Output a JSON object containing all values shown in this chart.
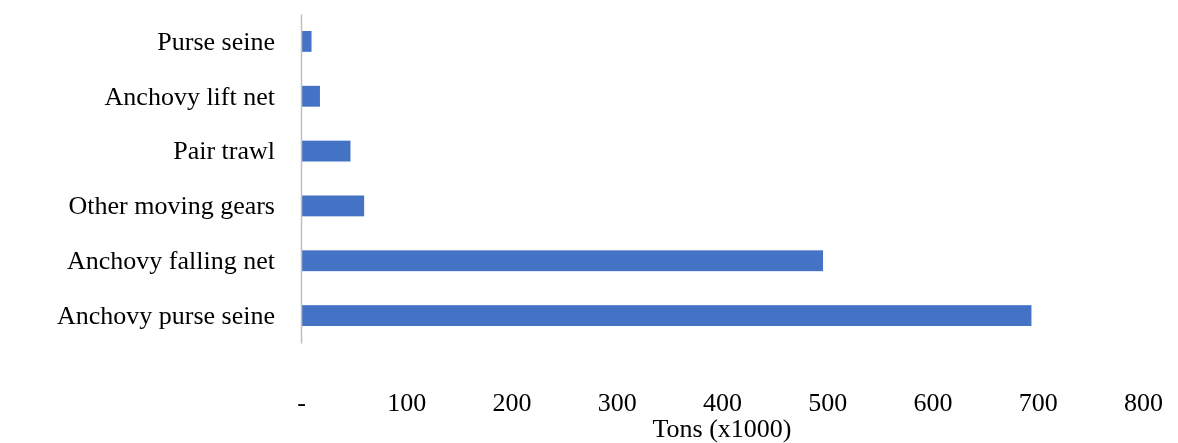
{
  "chart_data": {
    "type": "bar",
    "orientation": "horizontal",
    "xlabel": "Tons (x1000)",
    "categories": [
      "Purse seine",
      "Anchovy lift net",
      "Pair trawl",
      "Other moving gears",
      "Anchovy falling net",
      "Anchovy purse seine"
    ],
    "values": [
      10,
      18,
      47,
      60,
      496,
      694
    ],
    "color": "#4472c4",
    "xlim": [
      0,
      800
    ],
    "xticks": [
      {
        "value": 0,
        "label": "-"
      },
      100,
      200,
      300,
      400,
      500,
      600,
      700,
      800
    ],
    "grid": false
  }
}
